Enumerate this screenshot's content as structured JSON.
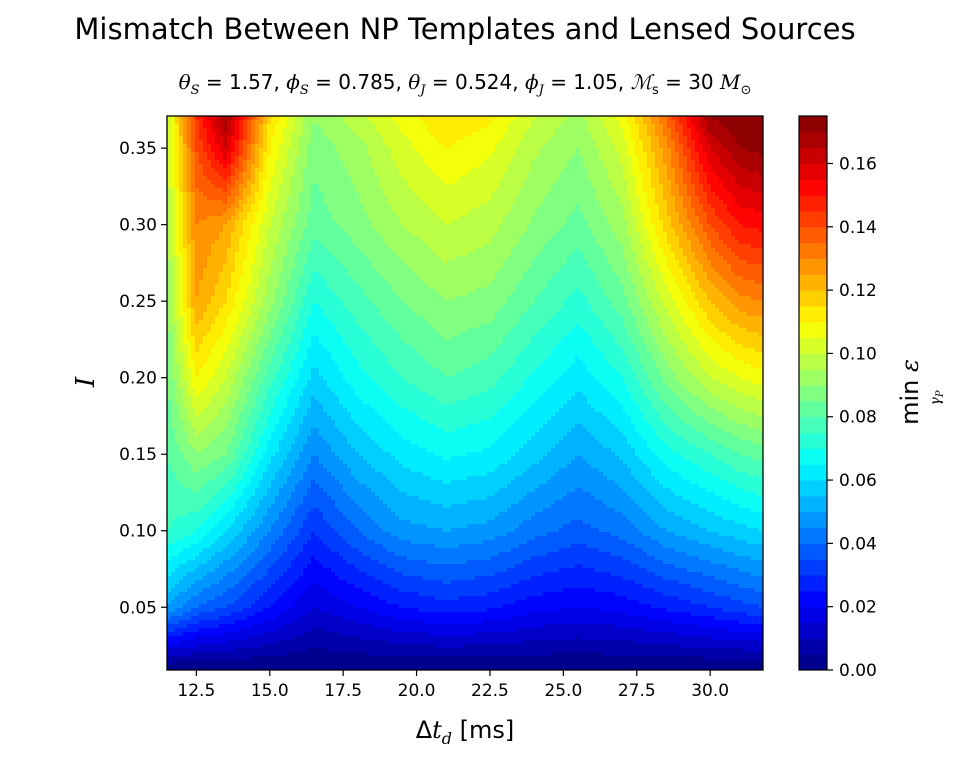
{
  "title": "Mismatch Between NP Templates and Lensed Sources",
  "subtitle_parts": {
    "theta_s": "= 1.57,",
    "phi_s": "= 0.785,",
    "theta_j": "= 0.524,",
    "phi_j": "= 1.05,",
    "mass": "= 30"
  },
  "chart_data": {
    "type": "heatmap",
    "subtype": "filled-contour",
    "colormap": "jet",
    "xlabel": "Δt_d [ms]",
    "ylabel": "I",
    "colorbar_label": "min ε (γ_P)",
    "xlim": [
      11.5,
      31.8
    ],
    "ylim": [
      0.009,
      0.371
    ],
    "clim": [
      0.0,
      0.175
    ],
    "xticks": [
      12.5,
      15.0,
      17.5,
      20.0,
      22.5,
      25.0,
      27.5,
      30.0
    ],
    "xtick_labels": [
      "12.5",
      "15.0",
      "17.5",
      "20.0",
      "22.5",
      "25.0",
      "27.5",
      "30.0"
    ],
    "yticks": [
      0.05,
      0.1,
      0.15,
      0.2,
      0.25,
      0.3,
      0.35
    ],
    "ytick_labels": [
      "0.05",
      "0.10",
      "0.15",
      "0.20",
      "0.25",
      "0.30",
      "0.35"
    ],
    "cbar_ticks": [
      0.0,
      0.02,
      0.04,
      0.06,
      0.08,
      0.1,
      0.12,
      0.14,
      0.16
    ],
    "cbar_tick_labels": [
      "0.00",
      "0.02",
      "0.04",
      "0.06",
      "0.08",
      "0.10",
      "0.12",
      "0.14",
      "0.16"
    ],
    "levels": 35,
    "x_samples": [
      11.5,
      12.5,
      13.5,
      15.0,
      16.5,
      18.0,
      19.5,
      21.0,
      22.5,
      24.0,
      25.5,
      27.0,
      28.5,
      30.0,
      31.0,
      31.8
    ],
    "y_samples": [
      0.01,
      0.05,
      0.1,
      0.15,
      0.2,
      0.25,
      0.3,
      0.35,
      0.37
    ],
    "z_grid": [
      [
        0.0,
        0.05,
        0.075,
        0.08,
        0.085,
        0.09,
        0.095,
        0.1,
        0.1
      ],
      [
        0.0,
        0.04,
        0.07,
        0.09,
        0.11,
        0.125,
        0.13,
        0.14,
        0.145
      ],
      [
        0.0,
        0.035,
        0.06,
        0.085,
        0.1,
        0.115,
        0.125,
        0.16,
        0.17
      ],
      [
        0.0,
        0.025,
        0.045,
        0.062,
        0.077,
        0.092,
        0.1,
        0.11,
        0.115
      ],
      [
        0.0,
        0.015,
        0.03,
        0.045,
        0.058,
        0.07,
        0.082,
        0.087,
        0.09
      ],
      [
        0.0,
        0.02,
        0.04,
        0.055,
        0.068,
        0.078,
        0.088,
        0.093,
        0.098
      ],
      [
        0.0,
        0.025,
        0.048,
        0.062,
        0.075,
        0.085,
        0.095,
        0.103,
        0.107
      ],
      [
        0.0,
        0.028,
        0.05,
        0.066,
        0.08,
        0.09,
        0.1,
        0.11,
        0.115
      ],
      [
        0.0,
        0.026,
        0.048,
        0.064,
        0.077,
        0.088,
        0.097,
        0.106,
        0.111
      ],
      [
        0.0,
        0.022,
        0.042,
        0.057,
        0.069,
        0.08,
        0.089,
        0.096,
        0.1
      ],
      [
        0.0,
        0.02,
        0.038,
        0.05,
        0.062,
        0.073,
        0.083,
        0.09,
        0.093
      ],
      [
        0.0,
        0.022,
        0.042,
        0.056,
        0.07,
        0.083,
        0.093,
        0.102,
        0.107
      ],
      [
        0.0,
        0.026,
        0.05,
        0.068,
        0.087,
        0.102,
        0.117,
        0.128,
        0.135
      ],
      [
        0.0,
        0.03,
        0.055,
        0.075,
        0.1,
        0.12,
        0.14,
        0.16,
        0.17
      ],
      [
        0.0,
        0.033,
        0.058,
        0.08,
        0.105,
        0.128,
        0.15,
        0.17,
        0.175
      ],
      [
        0.0,
        0.035,
        0.06,
        0.082,
        0.108,
        0.13,
        0.152,
        0.172,
        0.175
      ]
    ]
  }
}
